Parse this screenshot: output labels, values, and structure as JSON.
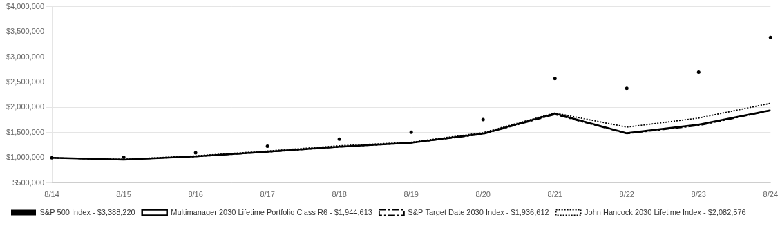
{
  "chart_data": {
    "type": "line",
    "categories": [
      "8/14",
      "8/15",
      "8/16",
      "8/17",
      "8/18",
      "8/19",
      "8/20",
      "8/21",
      "8/22",
      "8/23",
      "8/24"
    ],
    "series": [
      {
        "name": "S&P 500 Index - $3,388,220",
        "color": "#000000",
        "line_style": "none",
        "marker": "point",
        "values": [
          1000000,
          1010000,
          1100000,
          1230000,
          1370000,
          1510000,
          1760000,
          2570000,
          2380000,
          2700000,
          3388220
        ]
      },
      {
        "name": "Multimanager 2030 Lifetime Portfolio Class R6 - $1,944,613",
        "color": "#000000",
        "line_style": "solid",
        "marker": "none",
        "values": [
          1000000,
          965000,
          1030000,
          1120000,
          1220000,
          1300000,
          1480000,
          1880000,
          1490000,
          1660000,
          1944613
        ]
      },
      {
        "name": "S&P Target Date 2030 Index - $1,936,612",
        "color": "#000000",
        "line_style": "dashdot",
        "marker": "none",
        "values": [
          1000000,
          965000,
          1025000,
          1115000,
          1215000,
          1295000,
          1470000,
          1860000,
          1480000,
          1640000,
          1936612
        ]
      },
      {
        "name": "John Hancock 2030 Lifetime Index - $2,082,576",
        "color": "#000000",
        "line_style": "dotted",
        "marker": "none",
        "values": [
          1000000,
          970000,
          1040000,
          1135000,
          1240000,
          1310000,
          1500000,
          1890000,
          1610000,
          1790000,
          2082576
        ]
      }
    ],
    "ylim": [
      500000,
      4000000
    ],
    "yticks": [
      {
        "value": 500000,
        "label": "$500,000"
      },
      {
        "value": 1000000,
        "label": "$1,000,000"
      },
      {
        "value": 1500000,
        "label": "$1,500,000"
      },
      {
        "value": 2000000,
        "label": "$2,000,000"
      },
      {
        "value": 2500000,
        "label": "$2,500,000"
      },
      {
        "value": 3000000,
        "label": "$3,000,000"
      },
      {
        "value": 3500000,
        "label": "$3,500,000"
      },
      {
        "value": 4000000,
        "label": "$4,000,000"
      }
    ],
    "grid": "y",
    "legend": "bottom"
  }
}
